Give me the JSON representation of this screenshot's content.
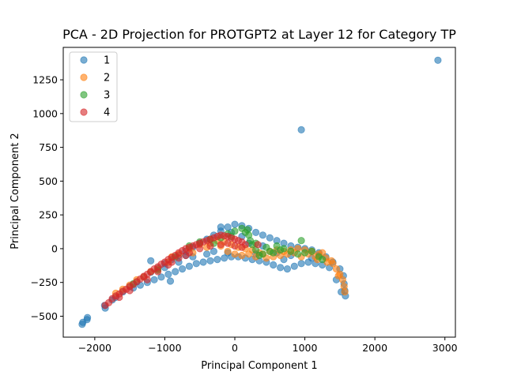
{
  "chart_data": {
    "type": "scatter",
    "title": "PCA - 2D Projection for PROTGPT2 at Layer 12 for Category TP",
    "xlabel": "Principal Component 1",
    "ylabel": "Principal Component 2",
    "xlim": [
      -2450,
      3150
    ],
    "ylim": [
      -655,
      1490
    ],
    "xticks": [
      -2000,
      -1000,
      0,
      1000,
      2000,
      3000
    ],
    "yticks": [
      -500,
      -250,
      0,
      250,
      500,
      750,
      1000,
      1250
    ],
    "grid": false,
    "legend_position": "top-left",
    "series": [
      {
        "name": "1",
        "color": "#1f77b4",
        "points": [
          [
            -2180,
            -560
          ],
          [
            -2170,
            -545
          ],
          [
            -2110,
            -525
          ],
          [
            -2105,
            -510
          ],
          [
            -1850,
            -440
          ],
          [
            -1860,
            -420
          ],
          [
            -1750,
            -380
          ],
          [
            -1700,
            -360
          ],
          [
            -1600,
            -320
          ],
          [
            -1500,
            -280
          ],
          [
            -1400,
            -245
          ],
          [
            -1300,
            -210
          ],
          [
            -1200,
            -175
          ],
          [
            -1100,
            -145
          ],
          [
            -1000,
            -110
          ],
          [
            -900,
            -80
          ],
          [
            -800,
            -50
          ],
          [
            -700,
            -20
          ],
          [
            -600,
            10
          ],
          [
            -500,
            40
          ],
          [
            -400,
            70
          ],
          [
            -300,
            100
          ],
          [
            -200,
            130
          ],
          [
            -100,
            160
          ],
          [
            0,
            180
          ],
          [
            100,
            170
          ],
          [
            200,
            150
          ],
          [
            300,
            120
          ],
          [
            400,
            100
          ],
          [
            500,
            80
          ],
          [
            600,
            60
          ],
          [
            700,
            40
          ],
          [
            800,
            20
          ],
          [
            900,
            10
          ],
          [
            1000,
            0
          ],
          [
            1100,
            -10
          ],
          [
            1200,
            -30
          ],
          [
            1300,
            -60
          ],
          [
            1400,
            -100
          ],
          [
            1500,
            -150
          ],
          [
            1550,
            -200
          ],
          [
            1560,
            -260
          ],
          [
            1570,
            -310
          ],
          [
            1580,
            -350
          ],
          [
            1520,
            -320
          ],
          [
            1450,
            -230
          ],
          [
            1350,
            -140
          ],
          [
            1250,
            -120
          ],
          [
            1150,
            -110
          ],
          [
            1050,
            -100
          ],
          [
            950,
            -110
          ],
          [
            850,
            -130
          ],
          [
            750,
            -150
          ],
          [
            650,
            -140
          ],
          [
            550,
            -120
          ],
          [
            450,
            -100
          ],
          [
            350,
            -90
          ],
          [
            250,
            -80
          ],
          [
            150,
            -70
          ],
          [
            50,
            -60
          ],
          [
            -50,
            -60
          ],
          [
            -150,
            -70
          ],
          [
            -250,
            -80
          ],
          [
            -350,
            -90
          ],
          [
            -450,
            -100
          ],
          [
            -550,
            -110
          ],
          [
            -650,
            -130
          ],
          [
            -750,
            -150
          ],
          [
            -850,
            -170
          ],
          [
            -950,
            -190
          ],
          [
            -1050,
            -210
          ],
          [
            -1150,
            -230
          ],
          [
            -1250,
            -250
          ],
          [
            -1350,
            -270
          ],
          [
            -1450,
            -290
          ],
          [
            -920,
            -240
          ],
          [
            -700,
            -50
          ],
          [
            -300,
            -20
          ],
          [
            200,
            40
          ],
          [
            600,
            -30
          ],
          [
            1100,
            -70
          ],
          [
            -200,
            160
          ],
          [
            -50,
            120
          ],
          [
            100,
            90
          ],
          [
            300,
            -40
          ],
          [
            800,
            -50
          ],
          [
            1200,
            -50
          ],
          [
            -1200,
            -90
          ],
          [
            -1000,
            -140
          ],
          [
            -800,
            -100
          ],
          [
            -600,
            -60
          ],
          [
            -400,
            -40
          ],
          [
            -100,
            -30
          ],
          [
            400,
            20
          ],
          [
            700,
            -80
          ],
          [
            950,
            880
          ],
          [
            2900,
            1395
          ]
        ]
      },
      {
        "name": "2",
        "color": "#ff7f0e",
        "points": [
          [
            -1700,
            -330
          ],
          [
            -1500,
            -270
          ],
          [
            -1300,
            -210
          ],
          [
            -1100,
            -150
          ],
          [
            -950,
            -100
          ],
          [
            -800,
            -40
          ],
          [
            -650,
            0
          ],
          [
            -500,
            30
          ],
          [
            -350,
            40
          ],
          [
            -200,
            20
          ],
          [
            -100,
            -20
          ],
          [
            0,
            -40
          ],
          [
            100,
            -50
          ],
          [
            200,
            -40
          ],
          [
            300,
            -60
          ],
          [
            400,
            -40
          ],
          [
            500,
            -20
          ],
          [
            600,
            -10
          ],
          [
            700,
            -20
          ],
          [
            800,
            -10
          ],
          [
            900,
            0
          ],
          [
            1000,
            -10
          ],
          [
            1100,
            -20
          ],
          [
            1200,
            -40
          ],
          [
            1300,
            -70
          ],
          [
            1400,
            -110
          ],
          [
            1450,
            -150
          ],
          [
            1500,
            -190
          ],
          [
            1540,
            -230
          ],
          [
            1560,
            -280
          ],
          [
            1570,
            -320
          ],
          [
            1480,
            -200
          ],
          [
            1380,
            -90
          ],
          [
            1250,
            -30
          ],
          [
            1150,
            -60
          ],
          [
            1050,
            -40
          ],
          [
            950,
            -60
          ],
          [
            850,
            -30
          ],
          [
            750,
            -40
          ],
          [
            650,
            -50
          ],
          [
            550,
            -60
          ],
          [
            450,
            -70
          ],
          [
            350,
            -30
          ],
          [
            250,
            -10
          ],
          [
            150,
            0
          ],
          [
            50,
            10
          ],
          [
            -50,
            30
          ],
          [
            -150,
            50
          ],
          [
            -250,
            60
          ],
          [
            -400,
            10
          ],
          [
            -600,
            -30
          ],
          [
            -900,
            -60
          ],
          [
            -1200,
            -170
          ],
          [
            -1400,
            -230
          ],
          [
            -1600,
            -300
          ],
          [
            1180,
            -80
          ],
          [
            1320,
            -100
          ]
        ]
      },
      {
        "name": "3",
        "color": "#2ca02c",
        "points": [
          [
            -1450,
            -260
          ],
          [
            -1100,
            -160
          ],
          [
            -850,
            -60
          ],
          [
            -650,
            20
          ],
          [
            -500,
            50
          ],
          [
            -350,
            70
          ],
          [
            -200,
            80
          ],
          [
            -100,
            110
          ],
          [
            0,
            130
          ],
          [
            100,
            150
          ],
          [
            150,
            120
          ],
          [
            200,
            100
          ],
          [
            220,
            60
          ],
          [
            250,
            30
          ],
          [
            300,
            -10
          ],
          [
            350,
            -50
          ],
          [
            300,
            40
          ],
          [
            400,
            -40
          ],
          [
            450,
            10
          ],
          [
            500,
            -20
          ],
          [
            550,
            -30
          ],
          [
            600,
            20
          ],
          [
            650,
            -10
          ],
          [
            700,
            0
          ],
          [
            800,
            -20
          ],
          [
            900,
            -40
          ],
          [
            950,
            60
          ],
          [
            1000,
            -30
          ],
          [
            1100,
            -20
          ],
          [
            1200,
            -60
          ],
          [
            1250,
            -80
          ],
          [
            180,
            140
          ],
          [
            -50,
            90
          ],
          [
            -300,
            40
          ]
        ]
      },
      {
        "name": "4",
        "color": "#d62728",
        "points": [
          [
            -1850,
            -420
          ],
          [
            -1800,
            -400
          ],
          [
            -1750,
            -370
          ],
          [
            -1700,
            -350
          ],
          [
            -1650,
            -335
          ],
          [
            -1600,
            -315
          ],
          [
            -1550,
            -300
          ],
          [
            -1500,
            -280
          ],
          [
            -1450,
            -265
          ],
          [
            -1400,
            -245
          ],
          [
            -1350,
            -225
          ],
          [
            -1300,
            -205
          ],
          [
            -1250,
            -190
          ],
          [
            -1200,
            -170
          ],
          [
            -1150,
            -150
          ],
          [
            -1100,
            -135
          ],
          [
            -1050,
            -115
          ],
          [
            -1000,
            -100
          ],
          [
            -950,
            -80
          ],
          [
            -900,
            -65
          ],
          [
            -850,
            -50
          ],
          [
            -800,
            -30
          ],
          [
            -750,
            -15
          ],
          [
            -700,
            0
          ],
          [
            -650,
            10
          ],
          [
            -600,
            20
          ],
          [
            -550,
            30
          ],
          [
            -500,
            40
          ],
          [
            -450,
            50
          ],
          [
            -400,
            60
          ],
          [
            -350,
            70
          ],
          [
            -300,
            80
          ],
          [
            -250,
            90
          ],
          [
            -200,
            100
          ],
          [
            -150,
            95
          ],
          [
            -100,
            90
          ],
          [
            -50,
            80
          ],
          [
            0,
            70
          ],
          [
            50,
            60
          ],
          [
            100,
            50
          ],
          [
            150,
            30
          ],
          [
            -1250,
            -230
          ],
          [
            -1100,
            -170
          ],
          [
            -950,
            -120
          ],
          [
            -800,
            -70
          ],
          [
            -650,
            -30
          ],
          [
            -500,
            0
          ],
          [
            -350,
            20
          ],
          [
            -200,
            30
          ],
          [
            -100,
            40
          ],
          [
            0,
            20
          ],
          [
            100,
            10
          ],
          [
            330,
            30
          ],
          [
            -700,
            -50
          ],
          [
            -900,
            -100
          ],
          [
            -1500,
            -310
          ],
          [
            -1650,
            -360
          ]
        ]
      }
    ]
  }
}
